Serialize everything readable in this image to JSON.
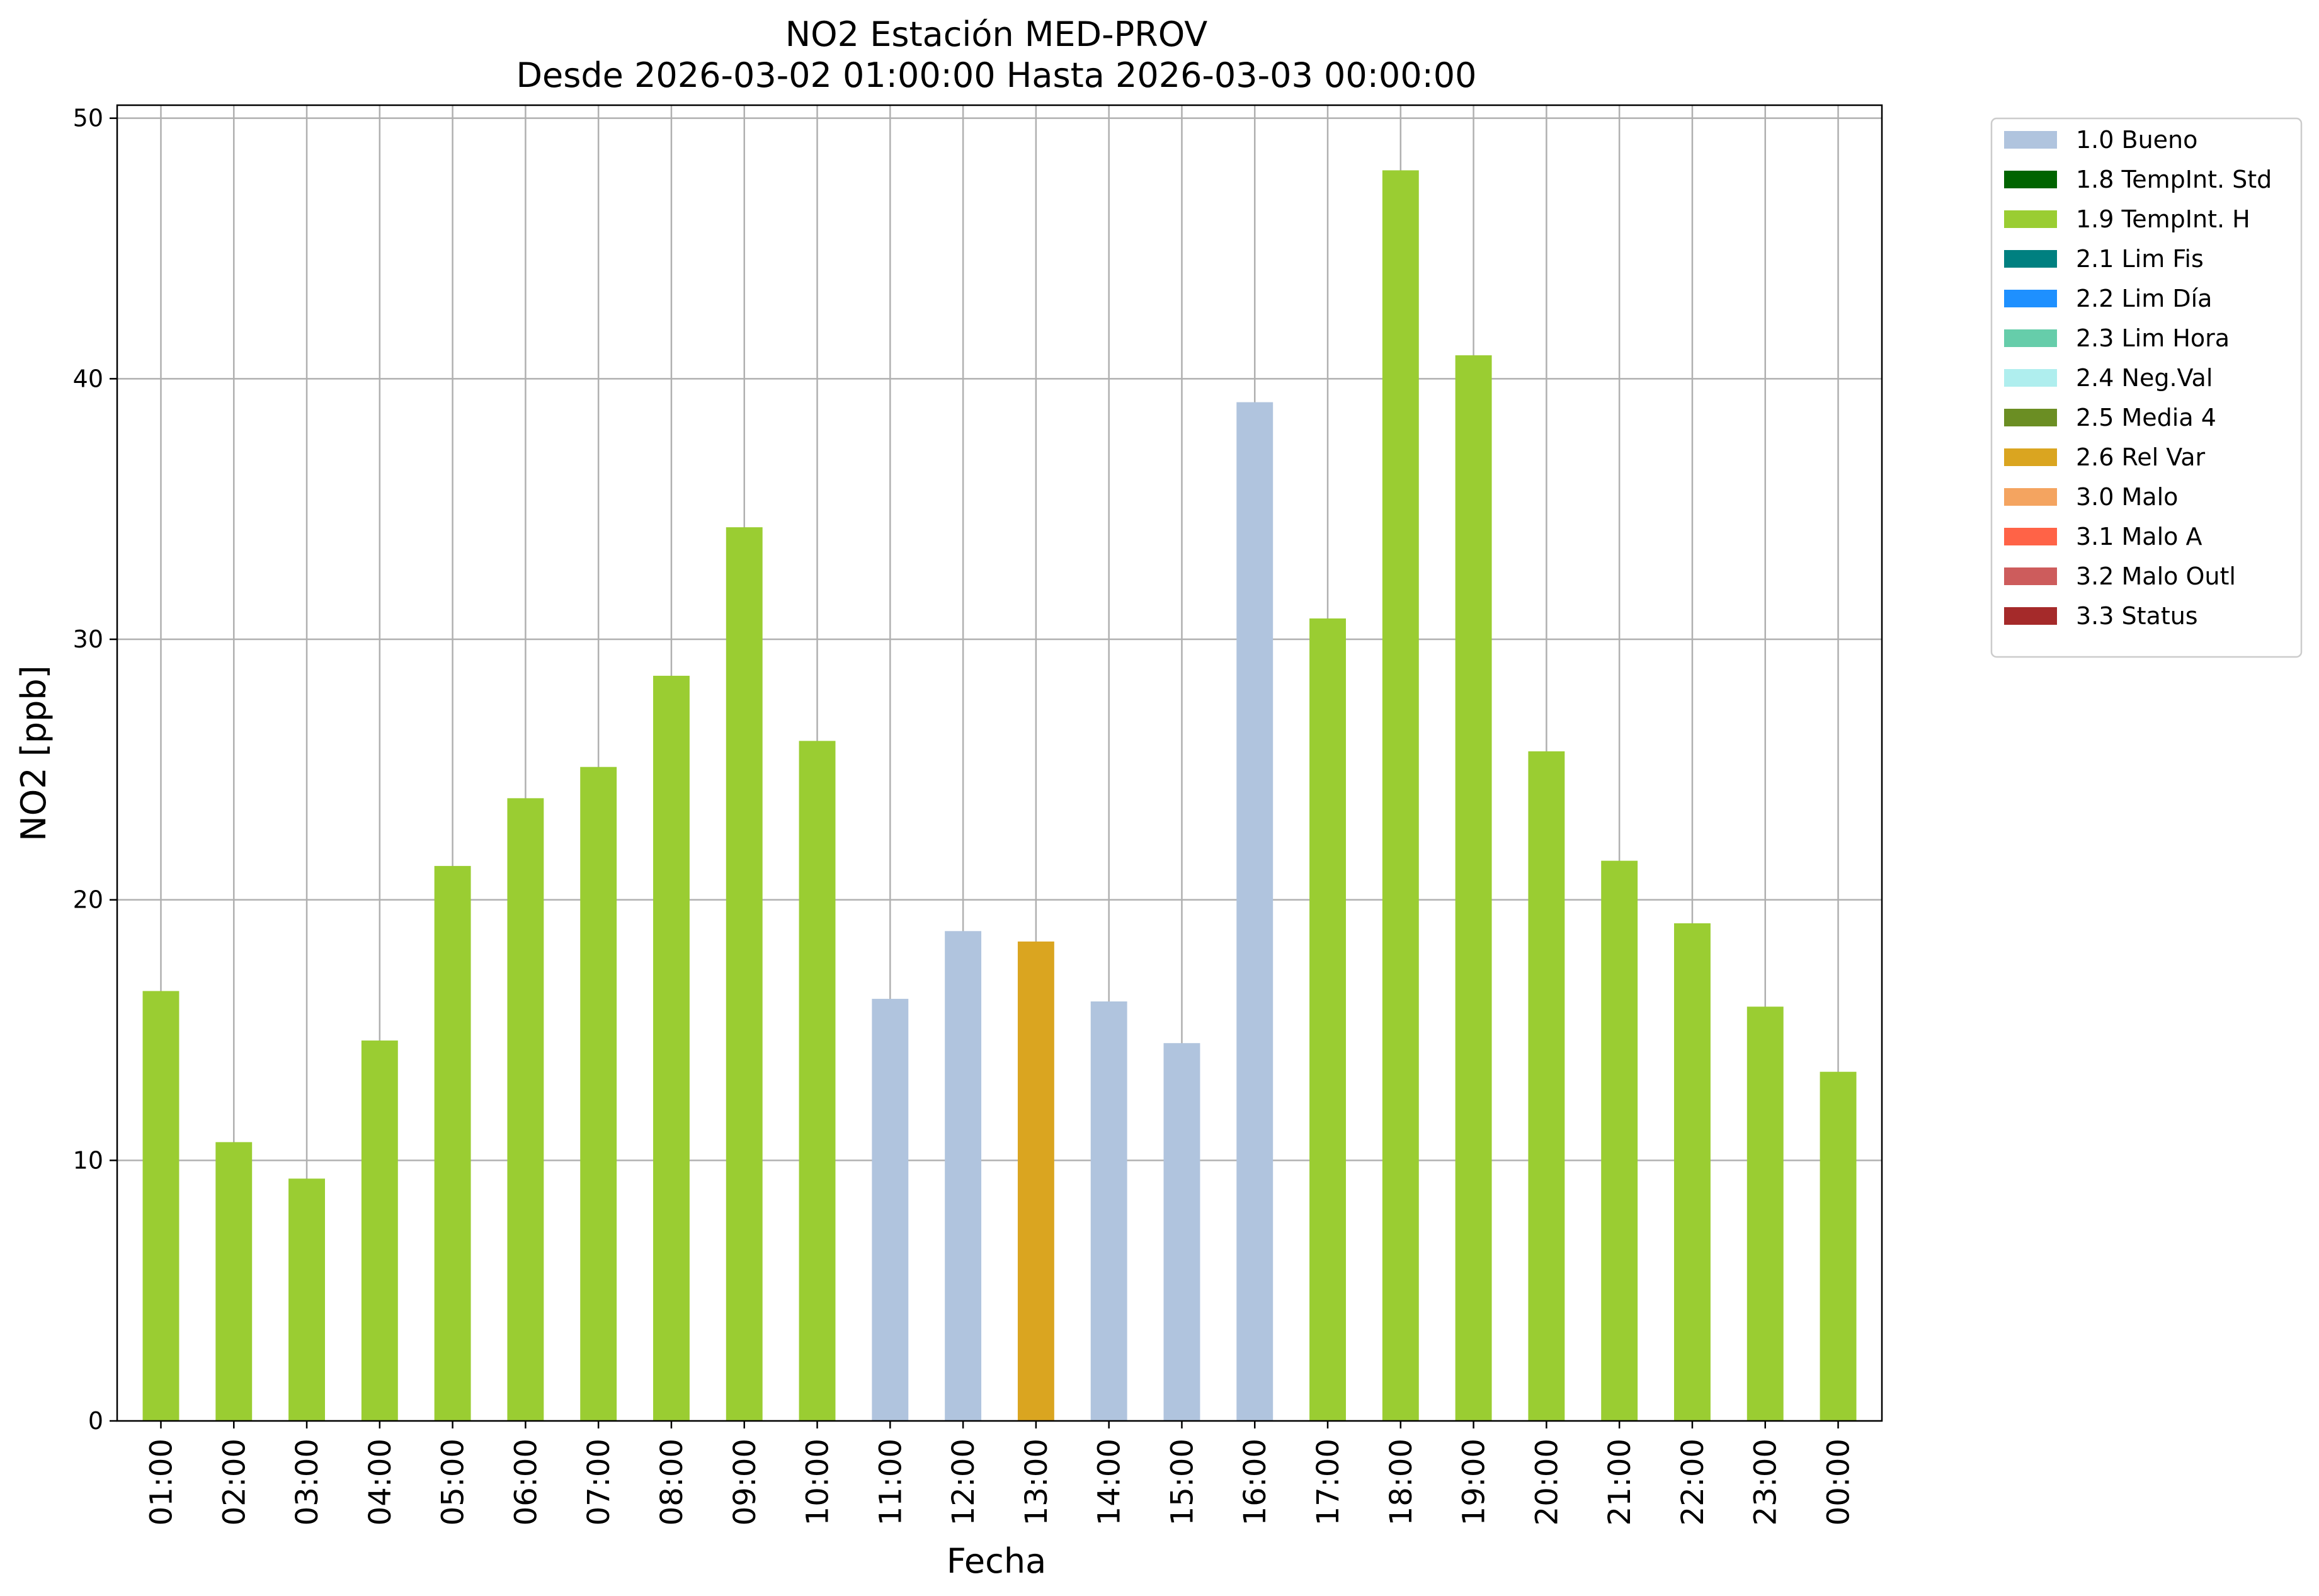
{
  "chart_data": {
    "type": "bar",
    "title": "NO2 Estación MED-PROV",
    "subtitle": "Desde 2026-03-02 01:00:00 Hasta 2026-03-03 00:00:00",
    "xlabel": "Fecha",
    "ylabel": "NO2 [ppb]",
    "ylim": [
      0,
      50.5
    ],
    "yticks": [
      "0",
      "10",
      "20",
      "30",
      "40",
      "50"
    ],
    "grid": true,
    "legend_position": "outside-top-right",
    "categories": [
      "01:00",
      "02:00",
      "03:00",
      "04:00",
      "05:00",
      "06:00",
      "07:00",
      "08:00",
      "09:00",
      "10:00",
      "11:00",
      "12:00",
      "13:00",
      "14:00",
      "15:00",
      "16:00",
      "17:00",
      "18:00",
      "19:00",
      "20:00",
      "21:00",
      "22:00",
      "23:00",
      "00:00"
    ],
    "values": [
      16.5,
      10.7,
      9.3,
      14.6,
      21.3,
      23.9,
      25.1,
      28.6,
      34.3,
      26.1,
      16.2,
      18.8,
      18.4,
      16.1,
      14.5,
      39.1,
      30.8,
      48.0,
      40.9,
      25.7,
      21.5,
      19.1,
      15.9,
      13.4
    ],
    "flags": [
      "1.9 TempInt. H",
      "1.9 TempInt. H",
      "1.9 TempInt. H",
      "1.9 TempInt. H",
      "1.9 TempInt. H",
      "1.9 TempInt. H",
      "1.9 TempInt. H",
      "1.9 TempInt. H",
      "1.9 TempInt. H",
      "1.9 TempInt. H",
      "1.0 Bueno",
      "1.0 Bueno",
      "2.6 Rel Var",
      "1.0 Bueno",
      "1.0 Bueno",
      "1.0 Bueno",
      "1.9 TempInt. H",
      "1.9 TempInt. H",
      "1.9 TempInt. H",
      "1.9 TempInt. H",
      "1.9 TempInt. H",
      "1.9 TempInt. H",
      "1.9 TempInt. H",
      "1.9 TempInt. H"
    ],
    "legend": [
      {
        "label": "1.0 Bueno",
        "color": "#b0c4de"
      },
      {
        "label": "1.8 TempInt. Std",
        "color": "#006400"
      },
      {
        "label": "1.9 TempInt. H",
        "color": "#9acd32"
      },
      {
        "label": "2.1 Lim Fis",
        "color": "#008080"
      },
      {
        "label": "2.2 Lim Día",
        "color": "#1e90ff"
      },
      {
        "label": "2.3 Lim Hora",
        "color": "#66cdaa"
      },
      {
        "label": "2.4 Neg.Val",
        "color": "#afeeee"
      },
      {
        "label": "2.5 Media 4",
        "color": "#6b8e23"
      },
      {
        "label": "2.6 Rel Var",
        "color": "#daa520"
      },
      {
        "label": "3.0 Malo",
        "color": "#f4a460"
      },
      {
        "label": "3.1 Malo A",
        "color": "#ff6347"
      },
      {
        "label": "3.2 Malo Outl",
        "color": "#cd5c5c"
      },
      {
        "label": "3.3 Status",
        "color": "#a52a2a"
      }
    ]
  }
}
